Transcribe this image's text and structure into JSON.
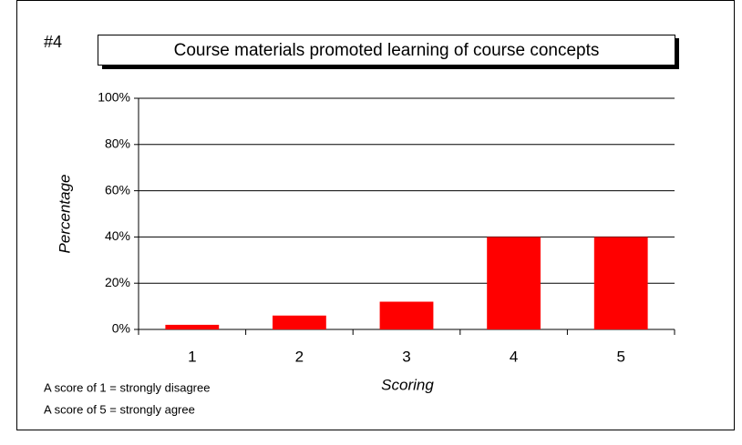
{
  "chart_data": {
    "type": "bar",
    "label": "#4",
    "title": "Course materials promoted learning of course concepts",
    "xlabel": "Scoring",
    "ylabel": "Percentage",
    "notes": [
      "A score of 1 = strongly disagree",
      "A score of 5 = strongly agree"
    ],
    "categories": [
      "1",
      "2",
      "3",
      "4",
      "5"
    ],
    "values": [
      2,
      6,
      12,
      40,
      40
    ],
    "color": "#ff0000",
    "ylim": [
      0,
      100
    ],
    "yticks": [
      {
        "value": 0,
        "label": "0%"
      },
      {
        "value": 20,
        "label": "20%"
      },
      {
        "value": 40,
        "label": "40%"
      },
      {
        "value": 60,
        "label": "60%"
      },
      {
        "value": 80,
        "label": "80%"
      },
      {
        "value": 100,
        "label": "100%"
      }
    ],
    "grid": true
  }
}
